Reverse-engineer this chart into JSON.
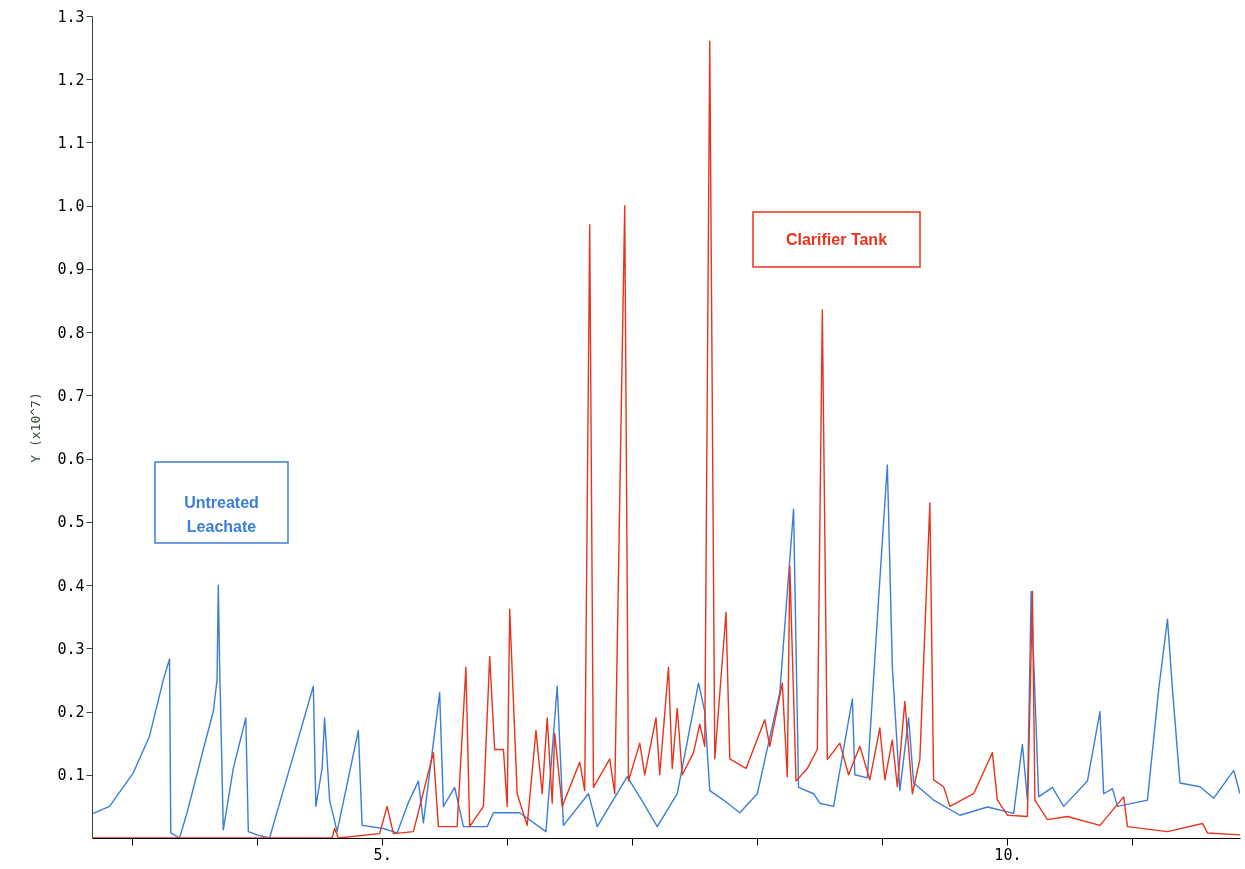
{
  "chart_data": {
    "type": "line",
    "ylabel": "Y (x10^7)",
    "xlim": [
      2.68,
      11.86
    ],
    "ylim": [
      0,
      1.3
    ],
    "xticks": [
      {
        "value": 3,
        "label": null
      },
      {
        "value": 4,
        "label": null
      },
      {
        "value": 5,
        "label": "5."
      },
      {
        "value": 6,
        "label": null
      },
      {
        "value": 7,
        "label": null
      },
      {
        "value": 8,
        "label": null
      },
      {
        "value": 9,
        "label": null
      },
      {
        "value": 10,
        "label": "10."
      },
      {
        "value": 11,
        "label": null
      }
    ],
    "yticks": [
      0.1,
      0.2,
      0.3,
      0.4,
      0.5,
      0.6,
      0.7,
      0.8,
      0.9,
      {
        "value": 1,
        "label": "1.0"
      },
      1.1,
      1.2,
      1.3
    ],
    "grid": false,
    "legend": false,
    "marker": "none",
    "line_style": "solid",
    "series": [
      {
        "name": "Untreated Leachate",
        "color": "#3a7fd5",
        "x": [
          2.69,
          2.82,
          3.01,
          3.14,
          3.25,
          3.3,
          3.31,
          3.38,
          3.44,
          3.57,
          3.65,
          3.68,
          3.69,
          3.7,
          3.73,
          3.81,
          3.91,
          3.93,
          4.0,
          4.1,
          4.45,
          4.47,
          4.52,
          4.54,
          4.58,
          4.64,
          4.81,
          4.84,
          5.01,
          5.12,
          5.21,
          5.29,
          5.33,
          5.46,
          5.49,
          5.58,
          5.65,
          5.84,
          5.89,
          6.1,
          6.31,
          6.4,
          6.45,
          6.65,
          6.72,
          6.96,
          7.09,
          7.2,
          7.36,
          7.53,
          7.58,
          7.62,
          7.73,
          7.86,
          8.0,
          8.18,
          8.29,
          8.33,
          8.45,
          8.5,
          8.61,
          8.76,
          8.78,
          8.88,
          8.97,
          9.04,
          9.08,
          9.14,
          9.21,
          9.25,
          9.41,
          9.62,
          9.84,
          10.05,
          10.12,
          10.16,
          10.19,
          10.25,
          10.36,
          10.45,
          10.64,
          10.74,
          10.77,
          10.84,
          10.88,
          11.12,
          11.21,
          11.28,
          11.32,
          11.38,
          11.54,
          11.65,
          11.81,
          11.86
        ],
        "values": [
          0.039,
          0.05,
          0.103,
          0.161,
          0.25,
          0.283,
          0.008,
          0.0,
          0.04,
          0.14,
          0.2,
          0.25,
          0.4,
          0.28,
          0.013,
          0.11,
          0.19,
          0.01,
          0.005,
          0.0,
          0.24,
          0.05,
          0.11,
          0.19,
          0.06,
          0.01,
          0.17,
          0.02,
          0.015,
          0.008,
          0.056,
          0.09,
          0.024,
          0.23,
          0.05,
          0.08,
          0.018,
          0.018,
          0.04,
          0.04,
          0.01,
          0.24,
          0.02,
          0.07,
          0.018,
          0.097,
          0.055,
          0.018,
          0.07,
          0.245,
          0.2,
          0.075,
          0.06,
          0.04,
          0.07,
          0.23,
          0.52,
          0.08,
          0.07,
          0.055,
          0.05,
          0.22,
          0.1,
          0.095,
          0.378,
          0.59,
          0.27,
          0.075,
          0.19,
          0.087,
          0.06,
          0.036,
          0.049,
          0.039,
          0.148,
          0.06,
          0.39,
          0.065,
          0.08,
          0.05,
          0.09,
          0.2,
          0.07,
          0.078,
          0.05,
          0.06,
          0.235,
          0.346,
          0.235,
          0.087,
          0.081,
          0.063,
          0.107,
          0.07
        ]
      },
      {
        "name": "Clarifier Tank",
        "color": "#e8341c",
        "x": [
          2.69,
          4.6,
          4.62,
          4.65,
          4.98,
          5.04,
          5.09,
          5.25,
          5.41,
          5.45,
          5.6,
          5.67,
          5.7,
          5.81,
          5.86,
          5.9,
          5.97,
          6.0,
          6.02,
          6.08,
          6.16,
          6.23,
          6.28,
          6.32,
          6.36,
          6.38,
          6.44,
          6.58,
          6.62,
          6.66,
          6.69,
          6.82,
          6.86,
          6.94,
          6.97,
          7.06,
          7.1,
          7.19,
          7.22,
          7.29,
          7.32,
          7.36,
          7.4,
          7.49,
          7.54,
          7.58,
          7.62,
          7.66,
          7.75,
          7.78,
          7.91,
          8.06,
          8.1,
          8.2,
          8.24,
          8.26,
          8.31,
          8.4,
          8.48,
          8.52,
          8.56,
          8.66,
          8.73,
          8.82,
          8.9,
          8.98,
          9.02,
          9.08,
          9.12,
          9.18,
          9.24,
          9.3,
          9.38,
          9.41,
          9.49,
          9.54,
          9.73,
          9.88,
          9.92,
          10.0,
          10.16,
          10.2,
          10.22,
          10.32,
          10.48,
          10.74,
          10.93,
          10.96,
          11.28,
          11.56,
          11.6,
          11.86
        ],
        "values": [
          0.0,
          0.0,
          0.015,
          0.0,
          0.007,
          0.05,
          0.007,
          0.01,
          0.135,
          0.018,
          0.018,
          0.27,
          0.018,
          0.05,
          0.287,
          0.14,
          0.14,
          0.05,
          0.362,
          0.07,
          0.02,
          0.17,
          0.07,
          0.19,
          0.055,
          0.165,
          0.05,
          0.12,
          0.075,
          0.97,
          0.08,
          0.125,
          0.07,
          1.0,
          0.09,
          0.15,
          0.1,
          0.19,
          0.1,
          0.27,
          0.11,
          0.205,
          0.1,
          0.135,
          0.18,
          0.145,
          1.26,
          0.125,
          0.357,
          0.125,
          0.11,
          0.187,
          0.145,
          0.245,
          0.097,
          0.43,
          0.09,
          0.11,
          0.14,
          0.835,
          0.124,
          0.15,
          0.1,
          0.145,
          0.092,
          0.174,
          0.092,
          0.155,
          0.081,
          0.216,
          0.07,
          0.124,
          0.53,
          0.092,
          0.081,
          0.05,
          0.07,
          0.135,
          0.06,
          0.036,
          0.034,
          0.39,
          0.06,
          0.029,
          0.034,
          0.02,
          0.065,
          0.018,
          0.01,
          0.023,
          0.008,
          0.005
        ]
      }
    ]
  }
}
